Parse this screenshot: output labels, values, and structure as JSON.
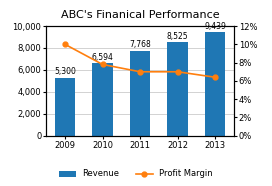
{
  "chart_data": {
    "type": "bar",
    "title": "ABC's Finanical Performance",
    "categories": [
      "2009",
      "2010",
      "2011",
      "2012",
      "2013"
    ],
    "series": [
      {
        "name": "Revenue",
        "type": "bar",
        "values": [
          5300,
          6594,
          7768,
          8525,
          9439
        ],
        "data_labels": true,
        "value_labels": [
          "5,300",
          "6,594",
          "7,768",
          "8,525",
          "9,439"
        ]
      },
      {
        "name": "Profit Margin",
        "type": "line",
        "axis": "y2",
        "marker": "o",
        "values": [
          10.0,
          7.8,
          7.0,
          7.0,
          6.4
        ]
      }
    ],
    "ylim": [
      0,
      10000
    ],
    "yticks": [
      0,
      {
        "value": 2000,
        "label": "2,000"
      },
      {
        "value": 4000,
        "label": "4,000"
      },
      {
        "value": 6000,
        "label": "6,000"
      },
      {
        "value": 8000,
        "label": "8,000"
      },
      {
        "value": 10000,
        "label": "10,000"
      }
    ],
    "y2lim": [
      0,
      12
    ],
    "y2ticks": [
      {
        "value": 0,
        "label": "0%"
      },
      {
        "value": 2,
        "label": "2%"
      },
      {
        "value": 4,
        "label": "4%"
      },
      {
        "value": 6,
        "label": "6%"
      },
      {
        "value": 8,
        "label": "8%"
      },
      {
        "value": 10,
        "label": "10%"
      },
      {
        "value": 12,
        "label": "12%"
      }
    ],
    "grid": true,
    "legend": "lower center"
  }
}
